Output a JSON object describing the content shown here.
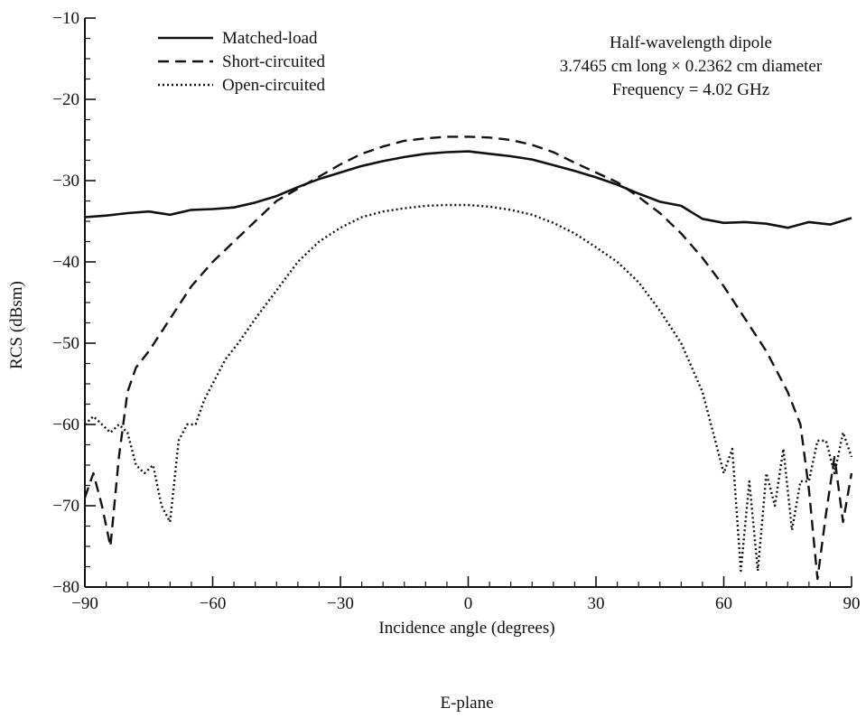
{
  "chart_data": {
    "type": "line",
    "title": "",
    "xlabel": "Incidence angle (degrees)",
    "ylabel": "RCS (dBsm)",
    "caption": "E-plane",
    "xlim": [
      -90,
      90
    ],
    "ylim": [
      -80,
      -10
    ],
    "x_ticks": [
      -90,
      -60,
      -30,
      0,
      30,
      60,
      90
    ],
    "x_tick_labels": [
      "−90",
      "−60",
      "−30",
      "0",
      "30",
      "60",
      "90"
    ],
    "y_ticks": [
      -10,
      -20,
      -30,
      -40,
      -50,
      -60,
      -70,
      -80
    ],
    "y_tick_labels": [
      "−10",
      "−20",
      "−30",
      "−40",
      "−50",
      "−60",
      "−70",
      "−80"
    ],
    "grid": false,
    "legend_position": "top-left",
    "annotation": [
      "Half-wavelength dipole",
      "3.7465 cm long × 0.2362 cm diameter",
      "Frequency = 4.02 GHz"
    ],
    "series": [
      {
        "name": "Matched-load",
        "style": "solid",
        "x": [
          -90,
          -85,
          -80,
          -75,
          -70,
          -65,
          -60,
          -55,
          -50,
          -45,
          -40,
          -35,
          -30,
          -25,
          -20,
          -15,
          -10,
          -5,
          0,
          5,
          10,
          15,
          20,
          25,
          30,
          35,
          40,
          45,
          50,
          55,
          60,
          65,
          70,
          75,
          80,
          85,
          90
        ],
        "y": [
          -34.5,
          -34.3,
          -34.0,
          -33.8,
          -34.2,
          -33.6,
          -33.5,
          -33.3,
          -32.7,
          -31.9,
          -30.8,
          -29.8,
          -29.0,
          -28.2,
          -27.6,
          -27.1,
          -26.7,
          -26.5,
          -26.4,
          -26.7,
          -27.0,
          -27.4,
          -28.1,
          -28.8,
          -29.6,
          -30.5,
          -31.6,
          -32.6,
          -33.1,
          -34.7,
          -35.2,
          -35.1,
          -35.3,
          -35.8,
          -35.1,
          -35.4,
          -34.6
        ]
      },
      {
        "name": "Short-circuited",
        "style": "dashed",
        "x": [
          -90,
          -88,
          -86,
          -84,
          -82,
          -80,
          -78,
          -75,
          -70,
          -65,
          -60,
          -55,
          -50,
          -45,
          -40,
          -35,
          -30,
          -25,
          -20,
          -15,
          -10,
          -5,
          0,
          5,
          10,
          15,
          20,
          25,
          30,
          35,
          40,
          45,
          50,
          55,
          60,
          65,
          70,
          75,
          78,
          80,
          82,
          84,
          86,
          88,
          90
        ],
        "y": [
          -69,
          -66,
          -70,
          -75,
          -64,
          -56,
          -53,
          -51,
          -47,
          -43,
          -40,
          -37.5,
          -35,
          -32.5,
          -31,
          -29.5,
          -28,
          -26.7,
          -25.8,
          -25.1,
          -24.8,
          -24.6,
          -24.6,
          -24.7,
          -25.0,
          -25.6,
          -26.5,
          -27.8,
          -29.0,
          -30.2,
          -32.0,
          -34.0,
          -36.5,
          -39.5,
          -43,
          -47,
          -51,
          -56,
          -60,
          -68,
          -79,
          -71,
          -64,
          -72,
          -66
        ]
      },
      {
        "name": "Open-circuited",
        "style": "dotted",
        "x": [
          -90,
          -88,
          -86,
          -84,
          -82,
          -80,
          -78,
          -76,
          -74,
          -72,
          -70,
          -68,
          -66,
          -64,
          -62,
          -60,
          -57,
          -54,
          -50,
          -45,
          -40,
          -35,
          -30,
          -25,
          -20,
          -15,
          -10,
          -5,
          0,
          5,
          10,
          15,
          20,
          25,
          30,
          35,
          40,
          45,
          50,
          55,
          58,
          60,
          62,
          64,
          66,
          68,
          70,
          72,
          74,
          76,
          78,
          80,
          82,
          84,
          86,
          88,
          90
        ],
        "y": [
          -60,
          -59,
          -60,
          -61,
          -60,
          -61,
          -65,
          -66,
          -65,
          -70,
          -72,
          -62,
          -60,
          -60,
          -57,
          -55,
          -52,
          -50,
          -47,
          -43.5,
          -40,
          -37.5,
          -35.8,
          -34.5,
          -33.8,
          -33.4,
          -33.1,
          -33.0,
          -33.0,
          -33.2,
          -33.6,
          -34.2,
          -35.2,
          -36.5,
          -38.2,
          -40.0,
          -42.5,
          -46.0,
          -50.0,
          -56.0,
          -62,
          -66,
          -63,
          -78,
          -67,
          -78,
          -66,
          -70,
          -63,
          -73,
          -67,
          -67,
          -62,
          -62,
          -66,
          -61,
          -64
        ]
      }
    ]
  }
}
